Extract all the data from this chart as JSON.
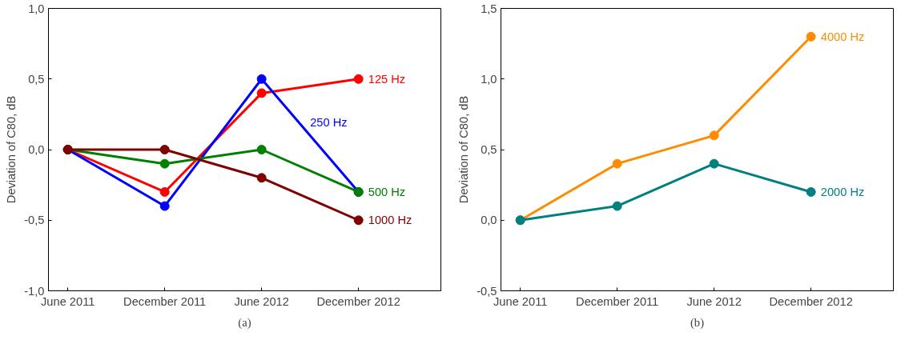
{
  "chart_data": [
    {
      "type": "line",
      "ylabel": "Deviation of C80, dB",
      "categories": [
        "June 2011",
        "December 2011",
        "June 2012",
        "December 2012"
      ],
      "ylim": [
        -1,
        1
      ],
      "yticks": [
        {
          "value": -1,
          "label": "-1,0"
        },
        {
          "value": -0.5,
          "label": "-0,5"
        },
        {
          "value": 0,
          "label": "0,0"
        },
        {
          "value": 0.5,
          "label": "0,5"
        },
        {
          "value": 1,
          "label": "1,0"
        }
      ],
      "series": [
        {
          "name": "125 Hz",
          "color": "#ff0000",
          "values": [
            0,
            -0.3,
            0.4,
            0.5
          ]
        },
        {
          "name": "250 Hz",
          "color": "#0000ff",
          "values": [
            0,
            -0.4,
            0.5,
            -0.3
          ]
        },
        {
          "name": "500 Hz",
          "color": "#008000",
          "values": [
            0,
            -0.1,
            0,
            -0.3
          ]
        },
        {
          "name": "1000 Hz",
          "color": "#800000",
          "values": [
            0,
            0,
            -0.2,
            -0.5
          ]
        }
      ],
      "marker": "circle",
      "grid": false,
      "annotations": [
        "(a)"
      ]
    },
    {
      "type": "line",
      "ylabel": "Deviation of C80, dB",
      "categories": [
        "June 2011",
        "December 2011",
        "June 2012",
        "December 2012"
      ],
      "ylim": [
        -0.5,
        1.5
      ],
      "yticks": [
        {
          "value": -0.5,
          "label": "-0,5"
        },
        {
          "value": 0,
          "label": "0,0"
        },
        {
          "value": 0.5,
          "label": "0,5"
        },
        {
          "value": 1,
          "label": "1,0"
        },
        {
          "value": 1.5,
          "label": "1,5"
        }
      ],
      "series": [
        {
          "name": "4000 Hz",
          "color": "#ff8c00",
          "values": [
            0,
            0.4,
            0.6,
            1.3
          ]
        },
        {
          "name": "2000 Hz",
          "color": "#008080",
          "values": [
            0,
            0.1,
            0.4,
            0.2
          ]
        }
      ],
      "marker": "circle",
      "grid": false,
      "annotations": [
        "(b)"
      ]
    }
  ]
}
